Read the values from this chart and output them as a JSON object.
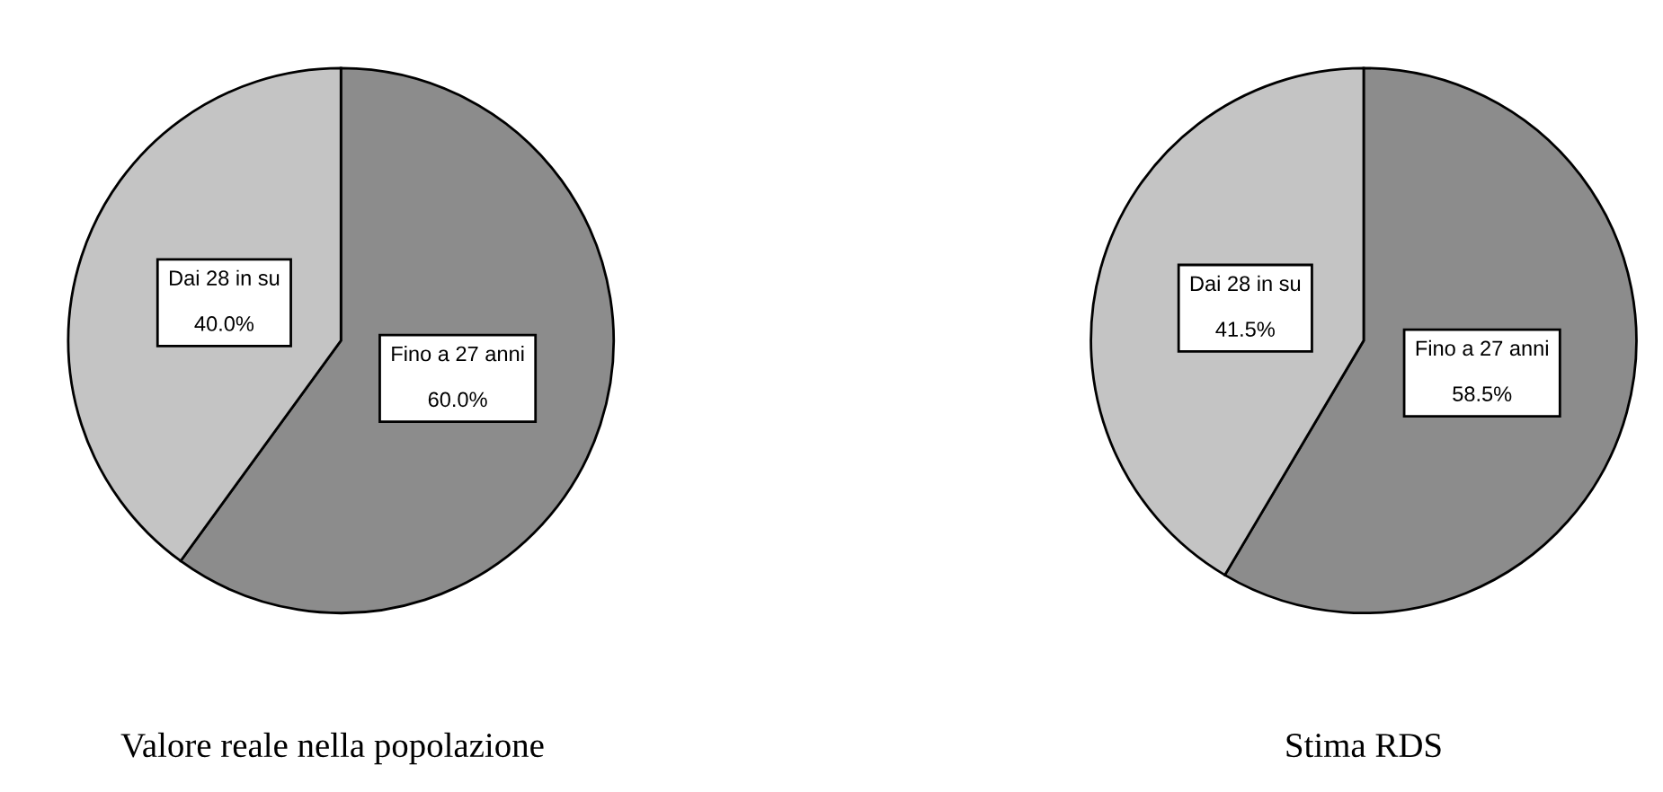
{
  "chart_data": [
    {
      "type": "pie",
      "title": "Valore reale nella popolazione",
      "categories": [
        "Fino a 27 anni",
        "Dai 28 in su"
      ],
      "values": [
        60.0,
        40.0
      ],
      "value_labels": [
        "60.0%",
        "40.0%"
      ],
      "colors": [
        "#8c8c8c",
        "#c4c4c4"
      ],
      "legend": false
    },
    {
      "type": "pie",
      "title": "Stima RDS",
      "categories": [
        "Fino a 27 anni",
        "Dai 28 in su"
      ],
      "values": [
        58.5,
        41.5
      ],
      "value_labels": [
        "58.5%",
        "41.5%"
      ],
      "colors": [
        "#8c8c8c",
        "#c4c4c4"
      ],
      "legend": false
    }
  ]
}
